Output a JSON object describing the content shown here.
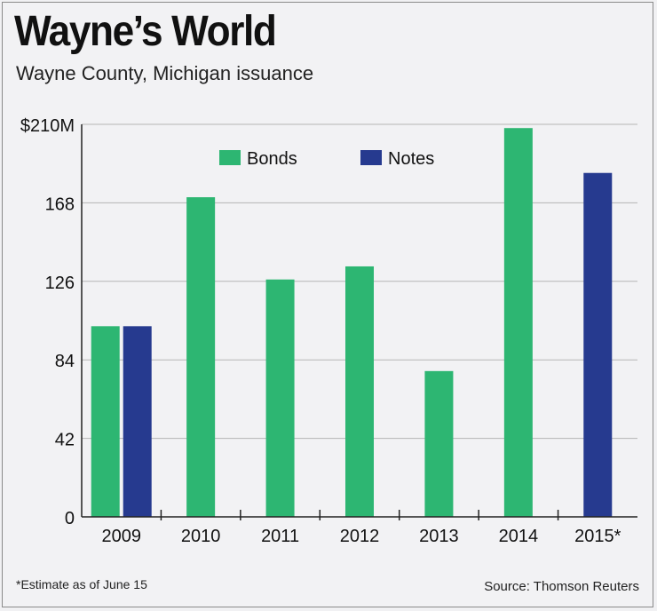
{
  "title": "Wayne’s World",
  "subtitle": "Wayne County, Michigan issuance",
  "footnote": "*Estimate as of June 15",
  "source": "Source: Thomson Reuters",
  "colors": {
    "bonds": "#2db672",
    "notes": "#263a8f",
    "grid": "#b5b5b5",
    "axis": "#222222"
  },
  "chart_data": {
    "type": "bar",
    "categories": [
      "2009",
      "2010",
      "2011",
      "2012",
      "2013",
      "2014",
      "2015*"
    ],
    "series": [
      {
        "name": "Bonds",
        "values": [
          102,
          171,
          127,
          134,
          78,
          208,
          null
        ]
      },
      {
        "name": "Notes",
        "values": [
          102,
          null,
          null,
          null,
          null,
          null,
          184
        ]
      }
    ],
    "yticks": [
      "0",
      "42",
      "84",
      "126",
      "168",
      "$210M"
    ],
    "ytick_values": [
      0,
      42,
      84,
      126,
      168,
      210
    ],
    "ylim": [
      0,
      210
    ],
    "grid": true,
    "legend_position": "top-center"
  }
}
